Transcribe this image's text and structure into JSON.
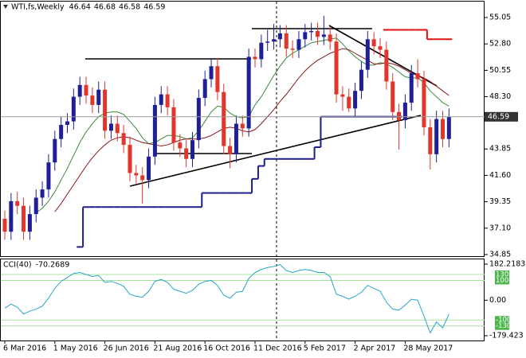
{
  "chart_data": [
    {
      "type": "candlestick",
      "title": "WTI,fs,Weekly",
      "ohlc_header": [
        46.64,
        46.68,
        46.58,
        46.59
      ],
      "categories": [
        "6 Mar 2016",
        null,
        null,
        null,
        null,
        null,
        null,
        null,
        "1 May 2016",
        null,
        null,
        null,
        null,
        null,
        null,
        null,
        "26 Jun 2016",
        null,
        null,
        null,
        null,
        null,
        null,
        null,
        "21 Aug 2016",
        null,
        null,
        null,
        null,
        null,
        null,
        null,
        "16 Oct 2016",
        null,
        null,
        null,
        null,
        null,
        null,
        null,
        "11 Dec 2016",
        null,
        null,
        null,
        null,
        null,
        null,
        null,
        "5 Feb 2017",
        null,
        null,
        null,
        null,
        null,
        null,
        null,
        "2 Apr 2017",
        null,
        null,
        null,
        null,
        null,
        null,
        null,
        "28 May 2017",
        null,
        null,
        null,
        null,
        null,
        null,
        null
      ],
      "open": [
        37.9,
        36.8,
        39.4,
        39.0,
        36.8,
        38.3,
        39.7,
        40.4,
        42.7,
        44.7,
        45.9,
        46.2,
        48.3,
        49.3,
        48.4,
        47.6,
        48.9,
        45.4,
        46.0,
        45.2,
        44.2,
        41.8,
        41.6,
        41.2,
        43.2,
        47.6,
        48.5,
        47.4,
        44.4,
        43.9,
        43.0,
        44.6,
        48.2,
        49.8,
        50.9,
        48.7,
        44.1,
        43.4,
        46.0,
        45.6,
        51.7,
        51.5,
        52.9,
        53.0,
        53.2,
        53.7,
        52.4,
        52.3,
        53.2,
        53.8,
        53.9,
        53.4,
        53.6,
        53.0,
        48.5,
        48.3,
        47.3,
        48.8,
        50.6,
        53.2,
        52.6,
        52.3,
        49.6,
        47.0,
        46.3,
        47.8,
        50.3,
        49.8,
        45.7,
        43.4,
        46.4,
        44.7
      ],
      "high": [
        38.6,
        40.1,
        40.2,
        39.7,
        39.0,
        40.4,
        41.1,
        43.4,
        45.4,
        46.6,
        46.9,
        49.0,
        50.0,
        50.0,
        49.1,
        49.6,
        49.6,
        46.7,
        46.7,
        45.9,
        44.9,
        42.5,
        42.3,
        43.9,
        48.3,
        49.2,
        49.2,
        48.1,
        45.1,
        44.6,
        45.3,
        48.9,
        50.5,
        51.6,
        51.6,
        49.4,
        44.8,
        46.7,
        46.7,
        52.4,
        52.4,
        53.6,
        54.0,
        54.5,
        54.4,
        54.4,
        53.1,
        53.9,
        54.5,
        54.6,
        54.6,
        55.2,
        54.3,
        53.7,
        49.2,
        49.0,
        49.5,
        51.3,
        53.9,
        53.8,
        53.3,
        53.0,
        50.3,
        47.7,
        48.5,
        51.0,
        51.5,
        50.5,
        46.4,
        47.1,
        47.1,
        47.3
      ],
      "low": [
        36.1,
        36.1,
        38.3,
        36.1,
        36.1,
        37.6,
        39.0,
        39.7,
        42.0,
        44.0,
        45.2,
        45.5,
        47.6,
        47.7,
        46.9,
        46.9,
        44.7,
        44.7,
        44.5,
        43.5,
        41.1,
        40.9,
        39.2,
        40.5,
        42.5,
        46.9,
        46.7,
        43.7,
        43.2,
        42.3,
        42.3,
        43.9,
        47.5,
        49.1,
        48.0,
        43.4,
        42.2,
        42.7,
        44.9,
        44.9,
        50.8,
        50.8,
        52.2,
        52.3,
        52.5,
        51.7,
        51.6,
        51.6,
        52.5,
        53.1,
        52.7,
        52.7,
        52.3,
        47.8,
        47.1,
        47.0,
        46.6,
        48.1,
        49.9,
        51.9,
        51.6,
        48.9,
        46.3,
        43.8,
        45.6,
        47.1,
        49.1,
        45.0,
        42.1,
        42.7,
        44.0,
        44.0
      ],
      "close": [
        36.8,
        39.4,
        39.0,
        36.8,
        38.3,
        39.7,
        40.4,
        42.7,
        44.7,
        45.9,
        46.2,
        48.3,
        49.3,
        48.4,
        47.6,
        48.9,
        45.4,
        46.0,
        45.2,
        44.2,
        41.8,
        41.6,
        41.2,
        43.2,
        47.6,
        48.5,
        47.4,
        44.4,
        43.9,
        43.0,
        44.6,
        48.2,
        49.8,
        50.9,
        48.7,
        44.1,
        43.4,
        46.0,
        45.6,
        51.7,
        51.5,
        52.9,
        53.0,
        53.2,
        53.7,
        52.4,
        52.3,
        53.2,
        53.8,
        53.9,
        53.4,
        53.6,
        53.0,
        48.5,
        48.3,
        47.3,
        48.8,
        50.6,
        53.2,
        52.6,
        52.3,
        49.6,
        47.0,
        46.3,
        47.8,
        50.3,
        49.8,
        45.7,
        43.4,
        46.4,
        44.7,
        46.59
      ],
      "up_color": "#1f1f96",
      "down_color": "#e2352b",
      "overlays": [
        {
          "style": "line",
          "color": "#3a8a3a",
          "values": [
            null,
            null,
            null,
            null,
            null,
            38.4,
            38.8,
            39.4,
            40.2,
            41.2,
            42.2,
            43.3,
            44.4,
            45.3,
            46.0,
            46.6,
            46.9,
            47.0,
            47.0,
            46.8,
            46.2,
            45.6,
            44.8,
            44.3,
            44.4,
            44.7,
            45.0,
            45.0,
            44.9,
            44.7,
            44.8,
            45.4,
            46.2,
            47.0,
            47.5,
            47.4,
            46.9,
            46.6,
            46.5,
            46.6,
            47.6,
            48.3,
            49.2,
            50.1,
            50.9,
            51.6,
            52.0,
            52.3,
            52.6,
            52.9,
            53.0,
            53.1,
            53.2,
            53.3,
            52.8,
            52.2,
            51.7,
            51.3,
            51.0,
            51.0,
            51.2,
            51.1,
            50.8,
            50.4,
            50.0,
            49.9,
            49.9,
            49.5,
            48.8,
            48.3,
            47.8,
            47.5
          ]
        },
        {
          "style": "line",
          "color": "#8b1a1a",
          "values": [
            null,
            null,
            null,
            null,
            null,
            null,
            null,
            null,
            38.5,
            39.2,
            40.0,
            40.8,
            41.6,
            42.4,
            43.1,
            43.7,
            44.2,
            44.6,
            44.8,
            44.9,
            44.8,
            44.6,
            44.4,
            44.3,
            44.2,
            44.1,
            44.2,
            44.4,
            44.6,
            44.7,
            44.7,
            44.7,
            44.8,
            45.0,
            45.3,
            45.6,
            45.7,
            45.6,
            45.4,
            45.3,
            45.5,
            46.0,
            46.6,
            47.2,
            47.9,
            48.5,
            49.2,
            49.9,
            50.5,
            51.0,
            51.4,
            51.7,
            52.0,
            52.2,
            52.4,
            52.3,
            52.0,
            51.7,
            51.4,
            51.1,
            51.1,
            51.2,
            51.1,
            50.9,
            50.6,
            50.3,
            50.1,
            49.9,
            49.6,
            49.2,
            48.8,
            48.4
          ]
        },
        {
          "style": "step",
          "color": "#1c1c8c",
          "values": [
            null,
            null,
            null,
            null,
            null,
            null,
            null,
            null,
            null,
            null,
            null,
            null,
            35.5,
            38.9,
            38.9,
            38.9,
            38.9,
            38.9,
            38.9,
            38.9,
            38.9,
            38.9,
            38.9,
            38.9,
            38.9,
            38.9,
            38.9,
            38.9,
            38.9,
            38.9,
            38.9,
            38.9,
            40.1,
            40.1,
            40.1,
            40.1,
            40.1,
            40.1,
            40.1,
            40.1,
            41.3,
            42.4,
            43.0,
            43.0,
            43.0,
            43.0,
            43.0,
            43.0,
            43.0,
            43.0,
            44.0,
            46.6,
            46.6,
            46.6,
            46.6,
            46.6,
            46.6,
            46.6,
            46.6,
            46.6,
            46.6,
            46.6,
            46.6,
            46.6,
            null,
            null,
            null,
            null,
            null,
            null,
            null,
            null
          ]
        },
        {
          "style": "step",
          "color": "#e01010",
          "values": [
            null,
            null,
            null,
            null,
            null,
            null,
            null,
            null,
            null,
            null,
            null,
            null,
            null,
            null,
            null,
            null,
            null,
            null,
            null,
            null,
            null,
            null,
            null,
            null,
            null,
            null,
            null,
            null,
            null,
            null,
            null,
            null,
            null,
            null,
            null,
            null,
            null,
            null,
            null,
            null,
            null,
            null,
            null,
            null,
            null,
            null,
            null,
            null,
            null,
            null,
            null,
            null,
            null,
            null,
            null,
            null,
            null,
            null,
            null,
            null,
            null,
            54.0,
            54.0,
            54.0,
            54.0,
            54.0,
            54.0,
            54.0,
            53.2,
            53.2,
            53.2,
            53.2
          ]
        }
      ],
      "ylim": [
        34.85,
        55.05
      ],
      "yticks": [
        55.05,
        {
          "value": 52.8,
          "label": "52.80"
        },
        50.55,
        {
          "value": 48.3,
          "label": "48.30"
        },
        43.85,
        {
          "value": 41.6,
          "label": "41.60"
        },
        39.35,
        {
          "value": 37.1,
          "label": "37.10"
        },
        34.85
      ]
    },
    {
      "type": "line",
      "title": "CCI(40)",
      "color": "#2aa6c8",
      "values": [
        -40,
        -20,
        -35,
        -70,
        -55,
        -45,
        -30,
        10,
        60,
        95,
        115,
        135,
        140,
        130,
        120,
        125,
        90,
        95,
        85,
        70,
        30,
        20,
        15,
        45,
        95,
        105,
        90,
        55,
        45,
        35,
        50,
        80,
        95,
        100,
        75,
        25,
        10,
        40,
        45,
        110,
        140,
        155,
        165,
        170,
        180,
        150,
        140,
        150,
        155,
        150,
        140,
        140,
        120,
        30,
        20,
        5,
        20,
        40,
        75,
        60,
        45,
        -10,
        -45,
        -50,
        -25,
        5,
        0,
        -80,
        -165,
        -110,
        -140,
        -70.2689
      ],
      "ylim": [
        -179.423,
        182.2183
      ],
      "yticks": [
        182.2183,
        {
          "value": 0,
          "label": "0.00"
        },
        -179.423
      ],
      "levels": [
        130,
        100,
        -100,
        -130
      ],
      "level_color": "#4cb84c"
    }
  ]
}
